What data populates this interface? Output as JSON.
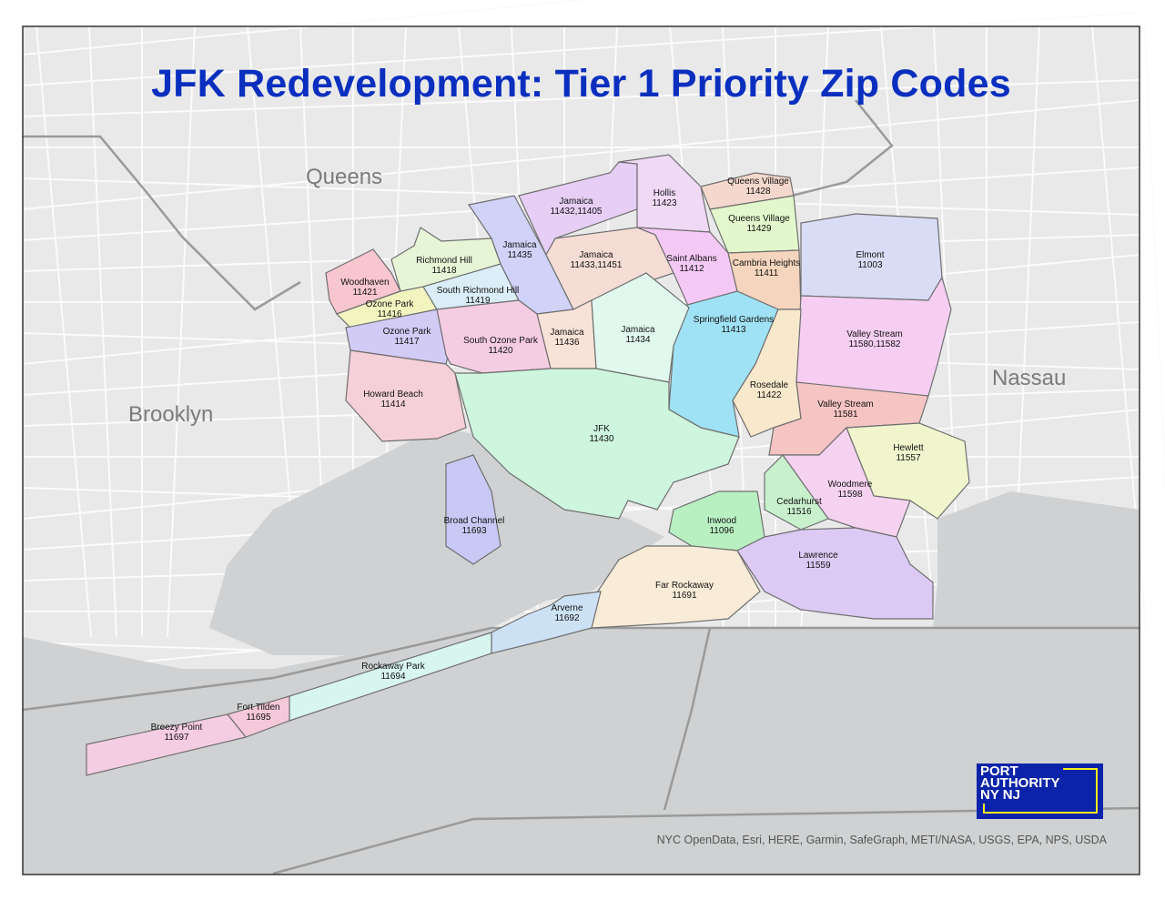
{
  "title": "JFK Redevelopment: Tier 1 Priority Zip Codes",
  "regions": {
    "queens": "Queens",
    "brooklyn": "Brooklyn",
    "nassau": "Nassau"
  },
  "credits": "NYC OpenData, Esri, HERE, Garmin, SafeGraph, METI/NASA, USGS, EPA, NPS, USDA",
  "logo": {
    "line1": "PORT",
    "line2": "AUTHORITY",
    "line3": "NY NJ"
  },
  "colors": {
    "title": "#0a2fbf",
    "land": "#e9e9ea",
    "water": "#cfd1d2",
    "boundary": "#6f6f6f",
    "logo_bg": "#0b23a8",
    "logo_accent": "#f5ee1a"
  },
  "zones": [
    {
      "name": "Woodhaven",
      "zip": "11421",
      "color": "#f7c6cf"
    },
    {
      "name": "Richmond Hill",
      "zip": "11418",
      "color": "#e6f5d6"
    },
    {
      "name": "Ozone Park",
      "zip": "11416",
      "color": "#f2f5c0"
    },
    {
      "name": "South Richmond Hill",
      "zip": "11419",
      "color": "#dbeef7"
    },
    {
      "name": "Ozone Park",
      "zip": "11417",
      "color": "#d2cbf5"
    },
    {
      "name": "Jamaica",
      "zip": "11435",
      "color": "#d0d2f7"
    },
    {
      "name": "Jamaica",
      "zip": "11432,11405",
      "color": "#e6cef5"
    },
    {
      "name": "Hollis",
      "zip": "11423",
      "color": "#efd9f5"
    },
    {
      "name": "Queens Village",
      "zip": "11428",
      "color": "#f5d8cd"
    },
    {
      "name": "Queens Village",
      "zip": "11429",
      "color": "#e2f8cc"
    },
    {
      "name": "Jamaica",
      "zip": "11433,11451",
      "color": "#f5ddd6"
    },
    {
      "name": "Saint Albans",
      "zip": "11412",
      "color": "#f5c9f5"
    },
    {
      "name": "Cambria Heights",
      "zip": "11411",
      "color": "#f5d5bd"
    },
    {
      "name": "Elmont",
      "zip": "11003",
      "color": "#d8dcf5"
    },
    {
      "name": "Valley Stream",
      "zip": "11580,11582",
      "color": "#f5cef2"
    },
    {
      "name": "Springfield Gardens",
      "zip": "11413",
      "color": "#a0e2f5"
    },
    {
      "name": "Rosedale",
      "zip": "11422",
      "color": "#f8e8cc"
    },
    {
      "name": "Valley Stream",
      "zip": "11581",
      "color": "#f5c5c3"
    },
    {
      "name": "Jamaica",
      "zip": "11436",
      "color": "#f8e3d8"
    },
    {
      "name": "Jamaica",
      "zip": "11434",
      "color": "#e0f8ee"
    },
    {
      "name": "South Ozone Park",
      "zip": "11420",
      "color": "#f5cde2"
    },
    {
      "name": "Howard Beach",
      "zip": "11414",
      "color": "#f5d0d8"
    },
    {
      "name": "JFK",
      "zip": "11430",
      "color": "#cef5dd"
    },
    {
      "name": "Hewlett",
      "zip": "11557",
      "color": "#f0f5cd"
    },
    {
      "name": "Woodmere",
      "zip": "11598",
      "color": "#f5d2f0"
    },
    {
      "name": "Cedarhurst",
      "zip": "11516",
      "color": "#c8f0cd"
    },
    {
      "name": "Inwood",
      "zip": "11096",
      "color": "#b9f0c2"
    },
    {
      "name": "Lawrence",
      "zip": "11559",
      "color": "#dccaf5"
    },
    {
      "name": "Far Rockaway",
      "zip": "11691",
      "color": "#f8ebd7"
    },
    {
      "name": "Arverne",
      "zip": "11692",
      "color": "#cde1f5"
    },
    {
      "name": "Broad Channel",
      "zip": "11693",
      "color": "#c9c9f5"
    },
    {
      "name": "Rockaway Park",
      "zip": "11694",
      "color": "#d8f5ef"
    },
    {
      "name": "Fort Tilden",
      "zip": "11695",
      "color": "#f5c9da"
    },
    {
      "name": "Breezy Point",
      "zip": "11697",
      "color": "#f5cde2"
    }
  ]
}
